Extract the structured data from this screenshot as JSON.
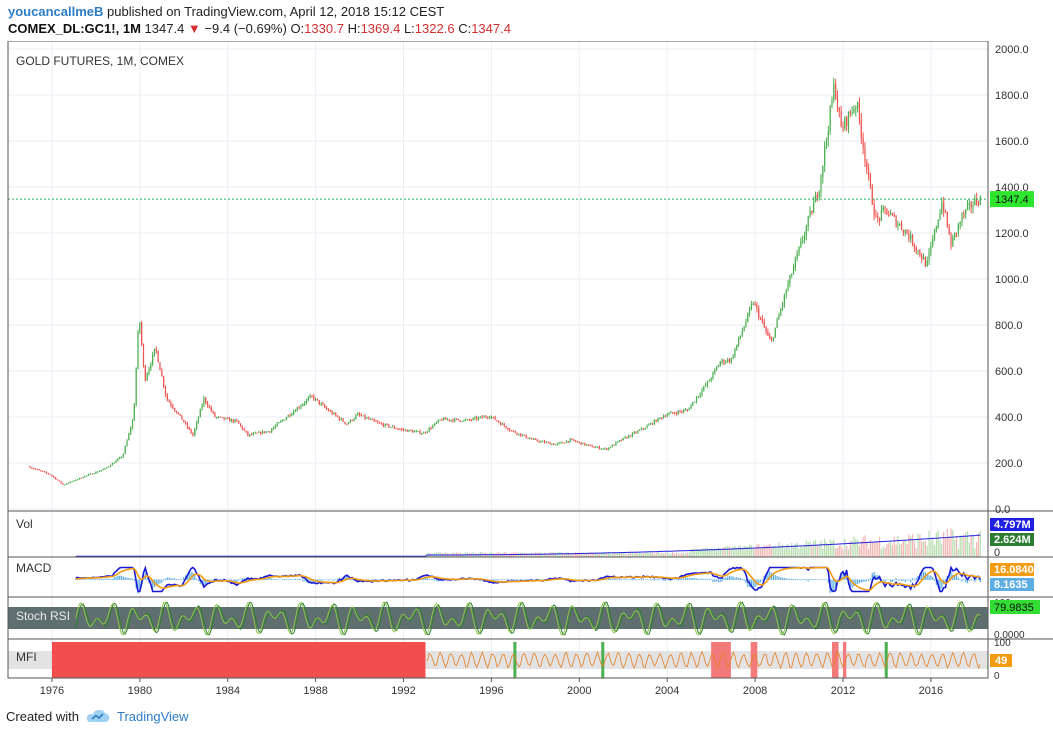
{
  "header": {
    "author": "youcancallmeB",
    "published": "published on TradingView.com, April 12, 2018 15:12 CEST",
    "symbol": "COMEX_DL:GC1!, 1M",
    "last": "1347.4",
    "change": "−9.4 (−0.69%)",
    "o_label": "O:",
    "o": "1330.7",
    "h_label": "H:",
    "h": "1369.4",
    "l_label": "L:",
    "l": "1322.6",
    "c_label": "C:",
    "c": "1347.4",
    "arrow_icon": "triangle-down-icon"
  },
  "chart_data": {
    "type": "candlestick",
    "title": "GOLD FUTURES, 1M, COMEX",
    "ylim": [
      0,
      2000
    ],
    "y_ticks": [
      "2000.0",
      "1800.0",
      "1600.0",
      "1400.0",
      "1200.0",
      "1000.0",
      "800.0",
      "600.0",
      "400.0",
      "200.0",
      "0.0"
    ],
    "x_ticks": [
      "1976",
      "1980",
      "1984",
      "1988",
      "1992",
      "1996",
      "2000",
      "2004",
      "2008",
      "2012",
      "2016"
    ],
    "last_price_label": "1347.4",
    "last_price": 1347.4,
    "price_path": [
      [
        1975.0,
        185
      ],
      [
        1976.0,
        150
      ],
      [
        1976.6,
        105
      ],
      [
        1977.5,
        140
      ],
      [
        1978.5,
        175
      ],
      [
        1979.3,
        230
      ],
      [
        1979.8,
        400
      ],
      [
        1980.05,
        850
      ],
      [
        1980.3,
        560
      ],
      [
        1980.8,
        700
      ],
      [
        1981.3,
        480
      ],
      [
        1982.0,
        390
      ],
      [
        1982.5,
        320
      ],
      [
        1983.0,
        480
      ],
      [
        1983.5,
        400
      ],
      [
        1984.5,
        380
      ],
      [
        1985.0,
        320
      ],
      [
        1986.0,
        340
      ],
      [
        1987.0,
        420
      ],
      [
        1987.9,
        490
      ],
      [
        1988.5,
        440
      ],
      [
        1989.5,
        370
      ],
      [
        1990.0,
        410
      ],
      [
        1991.0,
        370
      ],
      [
        1992.0,
        345
      ],
      [
        1993.0,
        330
      ],
      [
        1993.8,
        390
      ],
      [
        1995.0,
        385
      ],
      [
        1996.0,
        405
      ],
      [
        1997.0,
        340
      ],
      [
        1998.0,
        300
      ],
      [
        1999.0,
        280
      ],
      [
        1999.7,
        300
      ],
      [
        2000.5,
        275
      ],
      [
        2001.3,
        260
      ],
      [
        2002.0,
        300
      ],
      [
        2003.0,
        350
      ],
      [
        2004.0,
        410
      ],
      [
        2005.0,
        430
      ],
      [
        2006.0,
        560
      ],
      [
        2006.5,
        640
      ],
      [
        2007.0,
        650
      ],
      [
        2008.0,
        900
      ],
      [
        2008.8,
        720
      ],
      [
        2009.5,
        950
      ],
      [
        2010.5,
        1250
      ],
      [
        2011.0,
        1400
      ],
      [
        2011.7,
        1850
      ],
      [
        2012.0,
        1650
      ],
      [
        2012.7,
        1770
      ],
      [
        2013.3,
        1400
      ],
      [
        2013.6,
        1250
      ],
      [
        2014.0,
        1300
      ],
      [
        2015.0,
        1200
      ],
      [
        2015.9,
        1060
      ],
      [
        2016.6,
        1340
      ],
      [
        2017.0,
        1150
      ],
      [
        2017.5,
        1270
      ],
      [
        2018.0,
        1330
      ],
      [
        2018.27,
        1347
      ]
    ],
    "panes": [
      {
        "name": "Vol",
        "labels": [
          "4.797M",
          "2.624M"
        ],
        "colors": [
          "#2020e0",
          "#2e7d32"
        ],
        "extra_label": "0"
      },
      {
        "name": "MACD",
        "labels": [
          "16.0840",
          "8.1635"
        ],
        "colors": [
          "#f39c12",
          "#5dade2"
        ]
      },
      {
        "name": "Stoch RSI",
        "labels": [
          "79.9835",
          "0.0000"
        ],
        "colors": [
          "#4caf50",
          "#ffffff"
        ],
        "extra_label": "100"
      },
      {
        "name": "MFI",
        "labels": [
          "49"
        ],
        "colors": [
          "#f39c12"
        ],
        "extra_ticks": [
          "100",
          "0"
        ]
      }
    ]
  },
  "colors": {
    "up": "#4caf50",
    "down": "#ef5350",
    "grid": "#e9eef3",
    "price_line": "#27ae60",
    "price_label_bg": "#2ee62e"
  },
  "footer": {
    "created_with": "Created with",
    "brand": "TradingView",
    "logo_icon": "tradingview-cloud-icon"
  }
}
